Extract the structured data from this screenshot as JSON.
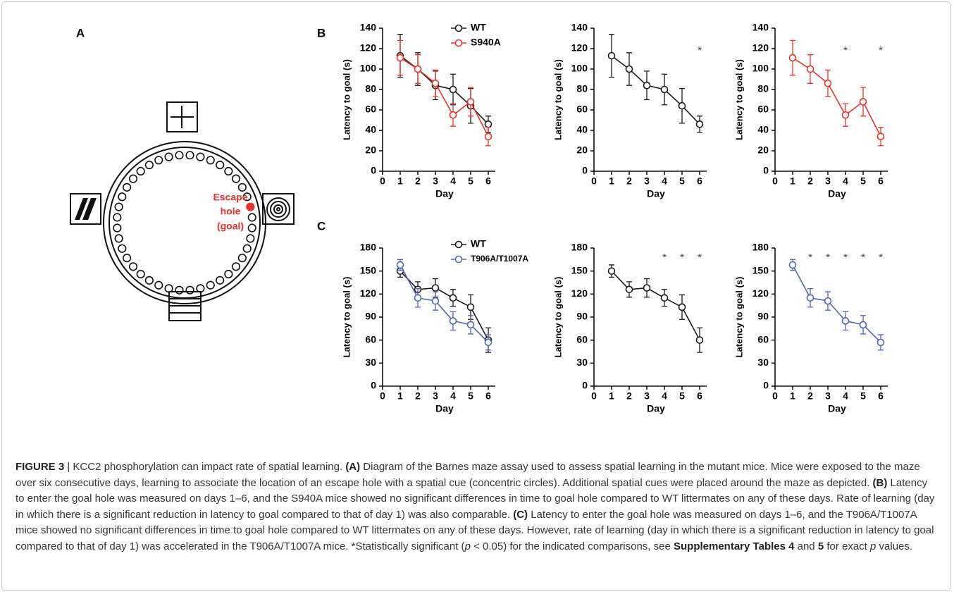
{
  "figure": {
    "panel_labels": [
      "A",
      "B",
      "C"
    ],
    "diagram": {
      "goal_label": [
        "Escape",
        "hole",
        "(goal)"
      ]
    }
  },
  "chart_data": [
    {
      "type": "line",
      "ylabel": "Latency to goal (s)",
      "xlabel": "Day",
      "x": [
        1,
        2,
        3,
        4,
        5,
        6
      ],
      "xlim": [
        0,
        6.4
      ],
      "xticks": [
        0,
        1,
        2,
        3,
        4,
        5,
        6
      ],
      "ylim": [
        0,
        140
      ],
      "yticks": [
        0,
        20,
        40,
        60,
        80,
        100,
        120,
        140
      ],
      "show_legend": true,
      "series": [
        {
          "name": "WT",
          "color": "#1a1a1a",
          "values": [
            113,
            100,
            84,
            80,
            64,
            46
          ],
          "errors": [
            21,
            16,
            14,
            15,
            17,
            8
          ]
        },
        {
          "name": "S940A",
          "color": "#e8322b",
          "values": [
            111,
            100,
            86,
            55,
            68,
            34
          ],
          "errors": [
            17,
            14,
            13,
            11,
            14,
            9
          ]
        }
      ]
    },
    {
      "type": "line",
      "ylabel": "Latency to goal (s)",
      "xlabel": "Day",
      "x": [
        1,
        2,
        3,
        4,
        5,
        6
      ],
      "xlim": [
        0,
        6.4
      ],
      "xticks": [
        0,
        1,
        2,
        3,
        4,
        5,
        6
      ],
      "ylim": [
        0,
        140
      ],
      "yticks": [
        0,
        20,
        40,
        60,
        80,
        100,
        120,
        140
      ],
      "show_legend": false,
      "series": [
        {
          "name": "WT",
          "color": "#1a1a1a",
          "values": [
            113,
            100,
            84,
            80,
            64,
            46
          ],
          "errors": [
            21,
            16,
            14,
            15,
            17,
            8
          ]
        }
      ],
      "significance_marker": "*",
      "significant_days": [
        6
      ]
    },
    {
      "type": "line",
      "ylabel": "Latency to goal (s)",
      "xlabel": "Day",
      "x": [
        1,
        2,
        3,
        4,
        5,
        6
      ],
      "xlim": [
        0,
        6.4
      ],
      "xticks": [
        0,
        1,
        2,
        3,
        4,
        5,
        6
      ],
      "ylim": [
        0,
        140
      ],
      "yticks": [
        0,
        20,
        40,
        60,
        80,
        100,
        120,
        140
      ],
      "show_legend": false,
      "series": [
        {
          "name": "S940A",
          "color": "#e8322b",
          "values": [
            111,
            100,
            86,
            55,
            68,
            34
          ],
          "errors": [
            17,
            14,
            13,
            11,
            14,
            9
          ]
        }
      ],
      "significance_marker": "*",
      "significant_days": [
        4,
        6
      ]
    },
    {
      "type": "line",
      "ylabel": "Latency to goal (s)",
      "xlabel": "Day",
      "x": [
        1,
        2,
        3,
        4,
        5,
        6
      ],
      "xlim": [
        0,
        6.4
      ],
      "xticks": [
        0,
        1,
        2,
        3,
        4,
        5,
        6
      ],
      "ylim": [
        0,
        180
      ],
      "yticks": [
        0,
        30,
        60,
        90,
        120,
        150,
        180
      ],
      "show_legend": true,
      "series": [
        {
          "name": "WT",
          "color": "#1a1a1a",
          "values": [
            150,
            126,
            128,
            115,
            103,
            60
          ],
          "errors": [
            8,
            10,
            12,
            11,
            16,
            16
          ]
        },
        {
          "name": "T906A/T1007A",
          "color": "#4f67b0",
          "values": [
            158,
            115,
            111,
            85,
            80,
            57
          ],
          "errors": [
            7,
            12,
            12,
            12,
            12,
            10
          ]
        }
      ]
    },
    {
      "type": "line",
      "ylabel": "Latency to goal (s)",
      "xlabel": "Day",
      "x": [
        1,
        2,
        3,
        4,
        5,
        6
      ],
      "xlim": [
        0,
        6.4
      ],
      "xticks": [
        0,
        1,
        2,
        3,
        4,
        5,
        6
      ],
      "ylim": [
        0,
        180
      ],
      "yticks": [
        0,
        30,
        60,
        90,
        120,
        150,
        180
      ],
      "show_legend": false,
      "series": [
        {
          "name": "WT",
          "color": "#1a1a1a",
          "values": [
            150,
            126,
            128,
            115,
            103,
            60
          ],
          "errors": [
            8,
            10,
            12,
            11,
            16,
            16
          ]
        }
      ],
      "significance_marker": "*",
      "significant_days": [
        4,
        5,
        6
      ]
    },
    {
      "type": "line",
      "ylabel": "Latency to goal (s)",
      "xlabel": "Day",
      "x": [
        1,
        2,
        3,
        4,
        5,
        6
      ],
      "xlim": [
        0,
        6.4
      ],
      "xticks": [
        0,
        1,
        2,
        3,
        4,
        5,
        6
      ],
      "ylim": [
        0,
        180
      ],
      "yticks": [
        0,
        30,
        60,
        90,
        120,
        150,
        180
      ],
      "show_legend": false,
      "series": [
        {
          "name": "T906A/T1007A",
          "color": "#4f67b0",
          "values": [
            158,
            115,
            111,
            85,
            80,
            57
          ],
          "errors": [
            7,
            12,
            12,
            12,
            12,
            10
          ]
        }
      ],
      "significance_marker": "*",
      "significant_days": [
        2,
        3,
        4,
        5,
        6
      ]
    }
  ],
  "caption": {
    "segments": [
      {
        "text": "FIGURE 3",
        "style": "bold"
      },
      {
        "text": " | KCC2 phosphorylation can impact rate of spatial learning. ",
        "style": "normal"
      },
      {
        "text": "(A)",
        "style": "bold"
      },
      {
        "text": " Diagram of the Barnes maze assay used to assess spatial learning in the mutant mice. Mice were exposed to the maze over six consecutive days, learning to associate the location of an escape hole with a spatial cue (concentric circles). Additional spatial cues were placed around the maze as depicted. ",
        "style": "normal"
      },
      {
        "text": "(B)",
        "style": "bold"
      },
      {
        "text": " Latency to enter the goal hole was measured on days 1–6, and the S940A mice showed no significant differences in time to goal hole compared to WT littermates on any of these days. Rate of learning (day in which there is a significant reduction in latency to goal compared to that of day 1) was also comparable. ",
        "style": "normal"
      },
      {
        "text": "(C)",
        "style": "bold"
      },
      {
        "text": " Latency to enter the goal hole was measured on days 1–6, and the T906A/T1007A mice showed no significant differences in time to goal hole compared to WT littermates on any of these days. However, rate of learning (day in which there is a significant reduction in latency to goal compared to that of day 1) was accelerated in the T906A/T1007A mice. *Statistically significant (",
        "style": "normal"
      },
      {
        "text": "p",
        "style": "italic"
      },
      {
        "text": " < 0.05) for the indicated comparisons, see ",
        "style": "normal"
      },
      {
        "text": "Supplementary Tables 4",
        "style": "bold"
      },
      {
        "text": " and ",
        "style": "normal"
      },
      {
        "text": "5",
        "style": "bold"
      },
      {
        "text": " for exact ",
        "style": "normal"
      },
      {
        "text": "p",
        "style": "italic"
      },
      {
        "text": " values.",
        "style": "normal"
      }
    ]
  }
}
